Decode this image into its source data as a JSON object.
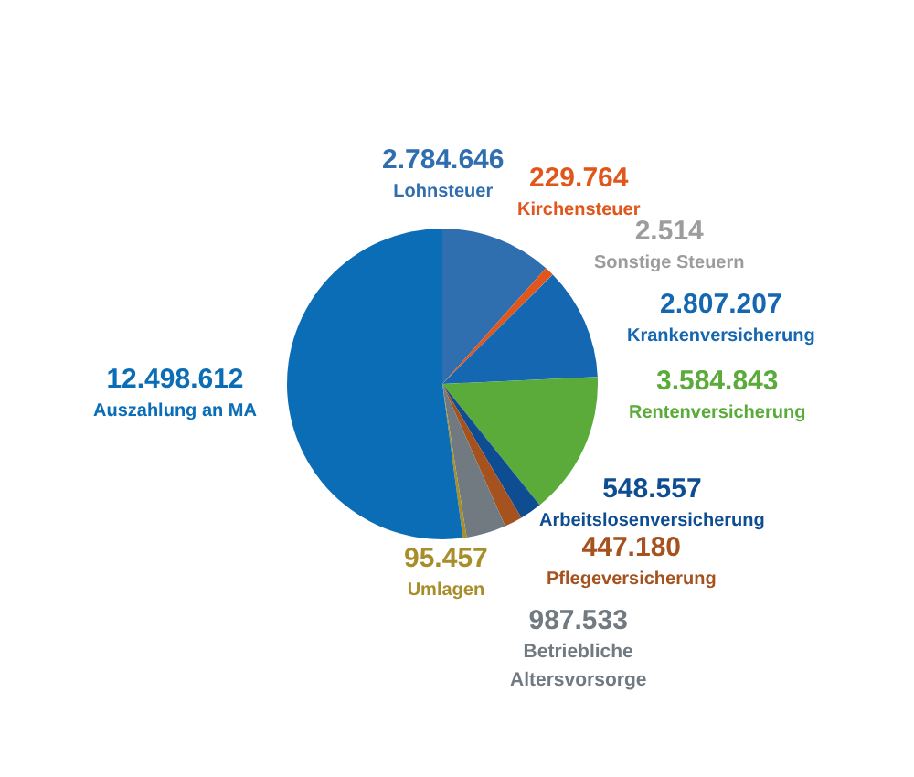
{
  "chart_data": {
    "type": "pie",
    "categories": [
      "Lohnsteuer",
      "Kirchensteuer",
      "Sonstige Steuern",
      "Krankenversicherung",
      "Rentenversicherung",
      "Arbeitslosenversicherung",
      "Pflegeversicherung",
      "Betriebliche Altersvorsorge",
      "Umlagen",
      "Auszahlung an MA"
    ],
    "values": [
      2784646,
      229764,
      2514,
      2807207,
      3584843,
      548557,
      447180,
      987533,
      95457,
      12498612
    ],
    "value_labels": [
      "2.784.646",
      "229.764",
      "2.514",
      "2.807.207",
      "3.584.843",
      "548.557",
      "447.180",
      "987.533",
      "95.457",
      "12.498.612"
    ],
    "colors": [
      "#2f6fb0",
      "#e0561b",
      "#9c9c9c",
      "#1467b0",
      "#5aab3a",
      "#0e4d92",
      "#a5521e",
      "#707a80",
      "#a88e2a",
      "#0a6db5"
    ],
    "legend": false
  }
}
